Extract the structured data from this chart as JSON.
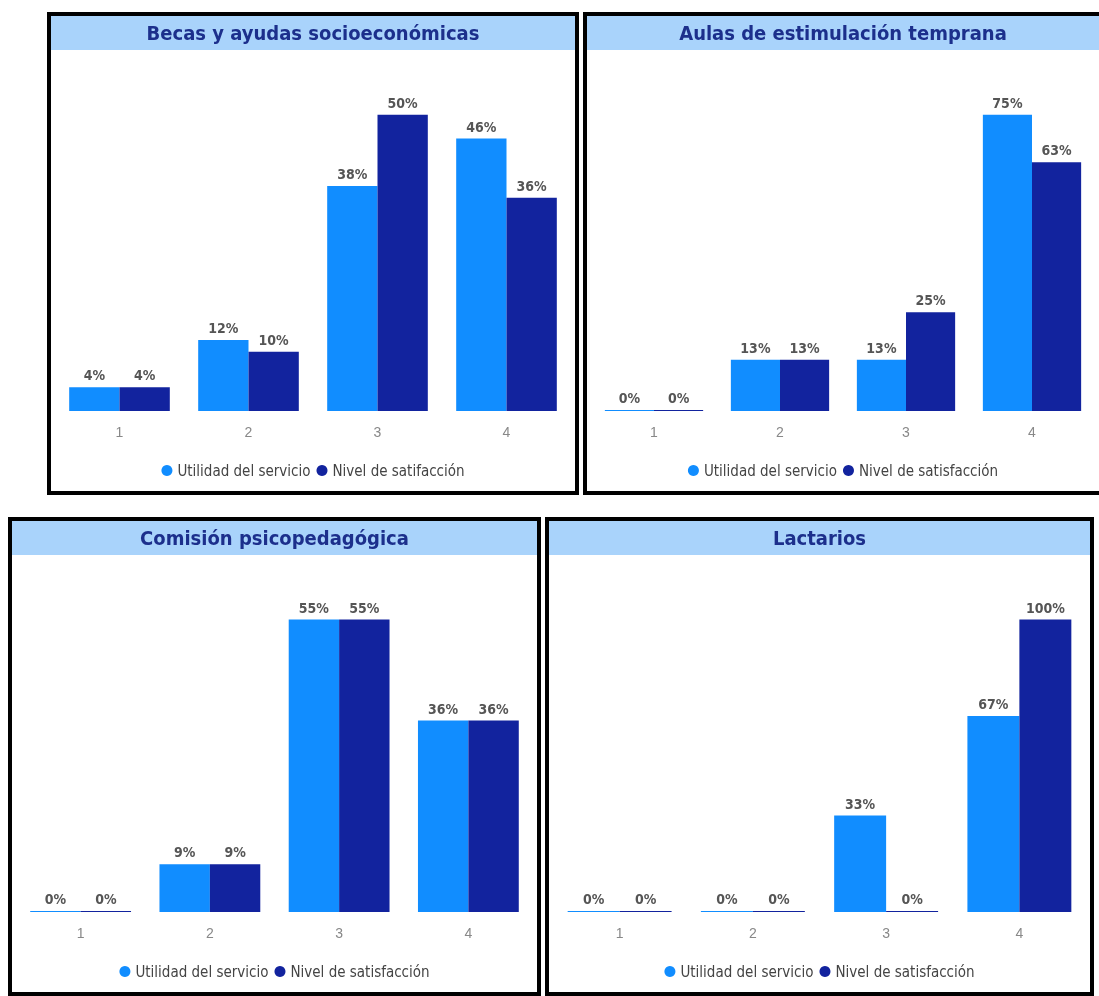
{
  "chart_data": [
    {
      "type": "bar",
      "title": "Becas y ayudas socioeconómicas",
      "categories": [
        "1",
        "2",
        "3",
        "4"
      ],
      "legend": "bottom",
      "series": [
        {
          "name": "Utilidad del servicio",
          "color": "#118dff",
          "values": [
            4,
            12,
            38,
            46
          ],
          "value_labels": [
            "4%",
            "12%",
            "38%",
            "46%"
          ]
        },
        {
          "name": "Nivel de satifacción",
          "color": "#12239e",
          "values": [
            4,
            10,
            50,
            36
          ],
          "value_labels": [
            "4%",
            "10%",
            "50%",
            "36%"
          ]
        }
      ]
    },
    {
      "type": "bar",
      "title": "Aulas de estimulación temprana",
      "categories": [
        "1",
        "2",
        "3",
        "4"
      ],
      "legend": "bottom",
      "series": [
        {
          "name": "Utilidad del servicio",
          "color": "#118dff",
          "values": [
            0,
            13,
            13,
            75
          ],
          "value_labels": [
            "0%",
            "13%",
            "13%",
            "75%"
          ]
        },
        {
          "name": "Nivel de satisfacción",
          "color": "#12239e",
          "values": [
            0,
            13,
            25,
            63
          ],
          "value_labels": [
            "0%",
            "13%",
            "25%",
            "63%"
          ]
        }
      ]
    },
    {
      "type": "bar",
      "title": "Comisión psicopedagógica",
      "categories": [
        "1",
        "2",
        "3",
        "4"
      ],
      "legend": "bottom",
      "series": [
        {
          "name": "Utilidad del servicio",
          "color": "#118dff",
          "values": [
            0,
            9,
            55,
            36
          ],
          "value_labels": [
            "0%",
            "9%",
            "55%",
            "36%"
          ]
        },
        {
          "name": "Nivel de satisfacción",
          "color": "#12239e",
          "values": [
            0,
            9,
            55,
            36
          ],
          "value_labels": [
            "0%",
            "9%",
            "55%",
            "36%"
          ]
        }
      ]
    },
    {
      "type": "bar",
      "title": "Lactarios",
      "categories": [
        "1",
        "2",
        "3",
        "4"
      ],
      "legend": "bottom",
      "series": [
        {
          "name": "Utilidad del servicio",
          "color": "#118dff",
          "values": [
            0,
            0,
            33,
            67
          ],
          "value_labels": [
            "0%",
            "0%",
            "33%",
            "67%"
          ]
        },
        {
          "name": "Nivel de satisfacción",
          "color": "#12239e",
          "values": [
            0,
            0,
            0,
            100
          ],
          "value_labels": [
            "0%",
            "0%",
            "0%",
            "100%"
          ]
        }
      ]
    }
  ]
}
